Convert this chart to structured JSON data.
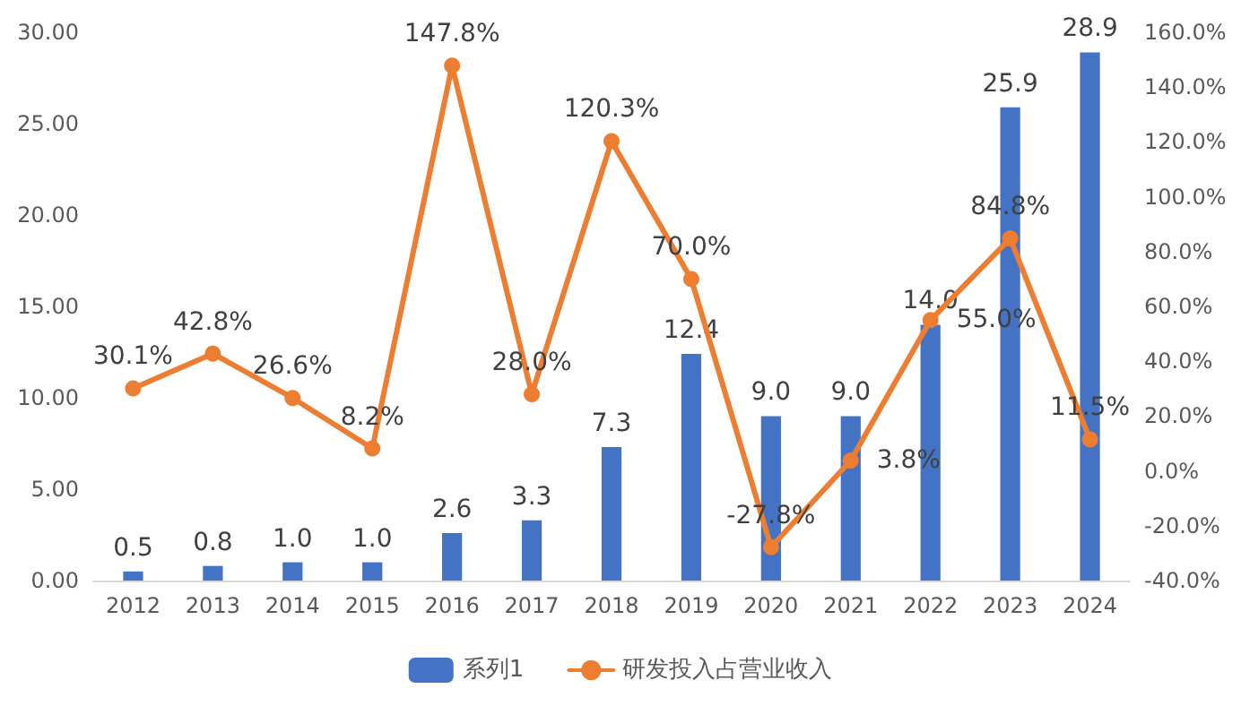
{
  "chart_data": {
    "type": "bar",
    "categories": [
      "2012",
      "2013",
      "2014",
      "2015",
      "2016",
      "2017",
      "2018",
      "2019",
      "2020",
      "2021",
      "2022",
      "2023",
      "2024"
    ],
    "series": [
      {
        "name": "系列1",
        "color": "#4472c4",
        "values": [
          0.5,
          0.8,
          1.0,
          1.0,
          2.6,
          3.3,
          7.3,
          12.4,
          9.0,
          9.0,
          14.0,
          25.9,
          28.9
        ],
        "value_labels": [
          "0.5",
          "0.8",
          "1.0",
          "1.0",
          "2.6",
          "3.3",
          "7.3",
          "12.4",
          "9.0",
          "9.0",
          "14.0",
          "25.9",
          "28.9"
        ]
      },
      {
        "name": "研发投入占营业收入",
        "type": "line",
        "axis": "y2",
        "color": "#ed7d31",
        "marker": "circle",
        "values": [
          30.1,
          42.8,
          26.6,
          8.2,
          147.8,
          28.0,
          120.3,
          70.0,
          -27.8,
          3.8,
          55.0,
          84.8,
          11.5
        ],
        "value_labels": [
          "30.1%",
          "42.8%",
          "26.6%",
          "8.2%",
          "147.8%",
          "28.0%",
          "120.3%",
          "70.0%",
          "-27.8%",
          "3.8%",
          "55.0%",
          "84.8%",
          "11.5%"
        ]
      }
    ],
    "ylim": [
      0,
      30
    ],
    "yticks": [
      {
        "value": 0,
        "label": "0.00"
      },
      {
        "value": 5,
        "label": "5.00"
      },
      {
        "value": 10,
        "label": "10.00"
      },
      {
        "value": 15,
        "label": "15.00"
      },
      {
        "value": 20,
        "label": "20.00"
      },
      {
        "value": 25,
        "label": "25.00"
      },
      {
        "value": 30,
        "label": "30.00"
      }
    ],
    "y2lim": [
      -40,
      160
    ],
    "y2ticks": [
      {
        "value": -40,
        "label": "-40.0%"
      },
      {
        "value": -20,
        "label": "-20.0%"
      },
      {
        "value": 0,
        "label": "0.0%"
      },
      {
        "value": 20,
        "label": "20.0%"
      },
      {
        "value": 40,
        "label": "40.0%"
      },
      {
        "value": 60,
        "label": "60.0%"
      },
      {
        "value": 80,
        "label": "80.0%"
      },
      {
        "value": 100,
        "label": "100.0%"
      },
      {
        "value": 120,
        "label": "120.0%"
      },
      {
        "value": 140,
        "label": "140.0%"
      },
      {
        "value": 160,
        "label": "160.0%"
      }
    ],
    "legend": "bottom",
    "grid": false
  }
}
